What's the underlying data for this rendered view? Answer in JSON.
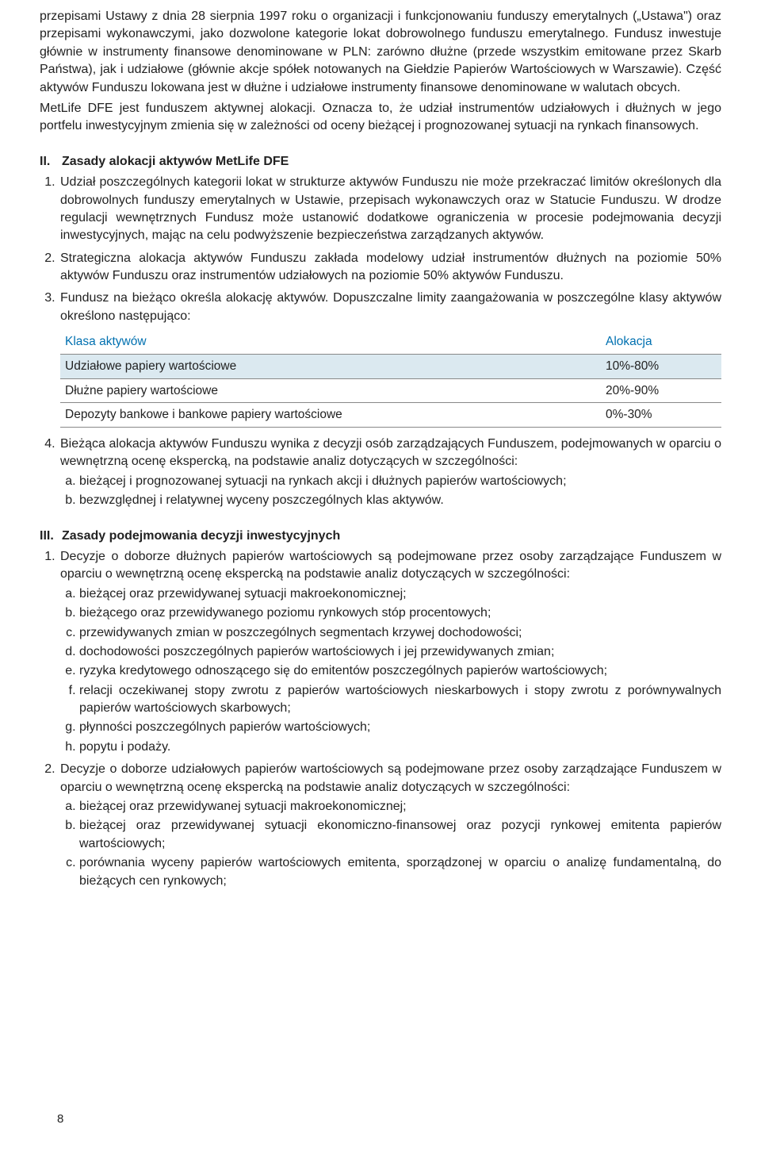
{
  "intro": {
    "p1": "przepisami Ustawy z dnia 28 sierpnia 1997 roku o organizacji i funkcjonowaniu funduszy emerytalnych („Ustawa\") oraz przepisami wykonawczymi, jako dozwolone kategorie lokat dobrowolnego funduszu emerytalnego. Fundusz inwestuje głównie w instrumenty finansowe denominowane w PLN: zarówno dłużne (przede wszystkim emitowane przez Skarb Państwa), jak i udziałowe (głównie akcje spółek notowanych na Giełdzie Papierów Wartościowych w Warszawie). Część aktywów Funduszu lokowana jest w dłużne i udziałowe instrumenty finansowe denominowane w walutach obcych.",
    "p2": "MetLife DFE jest funduszem aktywnej alokacji. Oznacza to, że udział instrumentów udziałowych i dłużnych w jego portfelu inwestycyjnym zmienia się w zależności od oceny bieżącej i prognozowanej sytuacji na rynkach finansowych."
  },
  "section2": {
    "roman": "II.",
    "title": "Zasady alokacji aktywów MetLife DFE",
    "items": [
      "Udział poszczególnych kategorii lokat w strukturze aktywów Funduszu nie może przekraczać limitów określonych dla dobrowolnych funduszy emerytalnych w Ustawie, przepisach wykonawczych oraz w Statucie Funduszu. W drodze regulacji wewnętrznych Fundusz może ustanowić dodatkowe ograniczenia w procesie podejmowania decyzji inwestycyjnych, mając na celu podwyższenie bezpieczeństwa zarządzanych aktywów.",
      "Strategiczna alokacja aktywów Funduszu zakłada modelowy udział instrumentów dłużnych na poziomie 50% aktywów Funduszu oraz instrumentów udziałowych na poziomie 50% aktywów Funduszu.",
      "Fundusz na bieżąco określa alokację aktywów. Dopuszczalne limity zaangażowania w poszczególne klasy aktywów określono następująco:"
    ],
    "table": {
      "headers": [
        "Klasa aktywów",
        "Alokacja"
      ],
      "rows": [
        [
          "Udziałowe papiery wartościowe",
          "10%-80%"
        ],
        [
          "Dłużne papiery wartościowe",
          "20%-90%"
        ],
        [
          "Depozyty bankowe i bankowe papiery wartościowe",
          "0%-30%"
        ]
      ]
    },
    "item4_lead": "Bieżąca alokacja aktywów Funduszu wynika z decyzji osób zarządzających Funduszem, podejmowanych w oparciu o wewnętrzną ocenę ekspercką, na podstawie analiz dotyczących w szczególności:",
    "item4_sub": [
      "bieżącej i prognozowanej sytuacji na rynkach akcji i dłużnych papierów wartościowych;",
      "bezwzględnej i relatywnej wyceny poszczególnych klas aktywów."
    ]
  },
  "section3": {
    "roman": "III.",
    "title": "Zasady podejmowania decyzji inwestycyjnych",
    "item1_lead": "Decyzje o doborze dłużnych papierów wartościowych są podejmowane przez osoby zarządzające Funduszem w oparciu o wewnętrzną ocenę ekspercką na podstawie analiz dotyczących w szczególności:",
    "item1_sub": [
      "bieżącej oraz przewidywanej sytuacji makroekonomicznej;",
      "bieżącego oraz przewidywanego poziomu rynkowych stóp procentowych;",
      "przewidywanych zmian w poszczególnych segmentach krzywej dochodowości;",
      "dochodowości poszczególnych papierów wartościowych i jej przewidywanych zmian;",
      "ryzyka kredytowego odnoszącego się do emitentów poszczególnych papierów wartościowych;",
      "relacji oczekiwanej stopy zwrotu z papierów wartościowych nieskarbowych i stopy zwrotu z porównywalnych papierów wartościowych skarbowych;",
      "płynności poszczególnych papierów wartościowych;",
      "popytu i podaży."
    ],
    "item2_lead": "Decyzje o doborze udziałowych papierów wartościowych są podejmowane przez osoby zarządzające Funduszem w oparciu o wewnętrzną ocenę ekspercką na podstawie analiz dotyczących w szczególności:",
    "item2_sub": [
      "bieżącej oraz przewidywanej sytuacji makroekonomicznej;",
      "bieżącej oraz przewidywanej sytuacji ekonomiczno-finansowej oraz pozycji rynkowej emitenta papierów wartościowych;",
      "porównania wyceny papierów wartościowych emitenta, sporządzonej w oparciu o analizę fundamentalną, do bieżących cen rynkowych;"
    ]
  },
  "page_number": "8"
}
